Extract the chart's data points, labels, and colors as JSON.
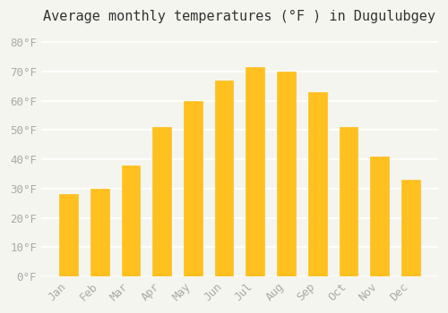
{
  "title": "Average monthly temperatures (°F ) in Dugulubgey",
  "months": [
    "Jan",
    "Feb",
    "Mar",
    "Apr",
    "May",
    "Jun",
    "Jul",
    "Aug",
    "Sep",
    "Oct",
    "Nov",
    "Dec"
  ],
  "values": [
    28,
    30,
    38,
    51,
    60,
    67,
    71.5,
    70,
    63,
    51,
    41,
    33
  ],
  "bar_color": "#FFC020",
  "bar_edge_color": "#FFD060",
  "background_color": "#F5F5F0",
  "grid_color": "#FFFFFF",
  "text_color": "#AAAAAA",
  "ylim": [
    0,
    84
  ],
  "yticks": [
    0,
    10,
    20,
    30,
    40,
    50,
    60,
    70,
    80
  ],
  "title_fontsize": 11,
  "tick_fontsize": 9
}
